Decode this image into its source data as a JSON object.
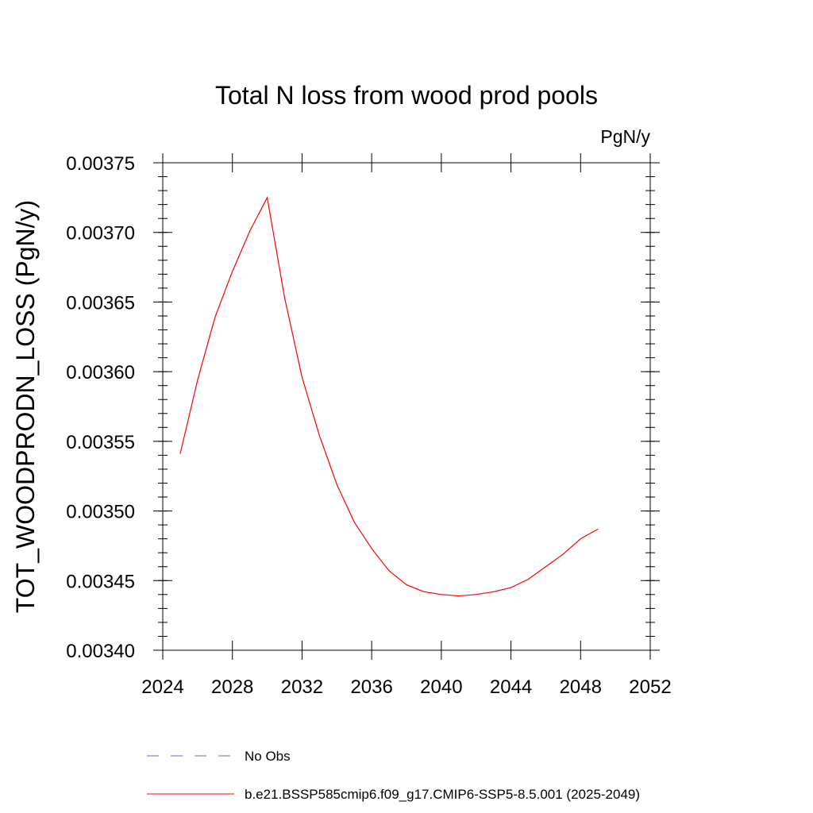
{
  "chart_data": {
    "type": "line",
    "title": "Total N loss from wood prod pools",
    "units": "PgN/y",
    "ylabel": "TOT_WOODPRODN_LOSS  (PgN/y)",
    "xlabel": "",
    "xlim": [
      2024,
      2052
    ],
    "ylim": [
      0.0034,
      0.00375
    ],
    "xticks": [
      "2024",
      "2028",
      "2032",
      "2036",
      "2040",
      "2044",
      "2048",
      "2052"
    ],
    "yticks": [
      "0.00340",
      "0.00345",
      "0.00350",
      "0.00355",
      "0.00360",
      "0.00365",
      "0.00370",
      "0.00375"
    ],
    "grid": false,
    "legend_position": "bottom",
    "series": [
      {
        "name": "No Obs",
        "color": "#6666cc",
        "style": "dashed",
        "x": [],
        "y": []
      },
      {
        "name": "b.e21.BSSP585cmip6.f09_g17.CMIP6-SSP5-8.5.001 (2025-2049)",
        "color": "#ff0000",
        "style": "solid",
        "x": [
          2025,
          2026,
          2027,
          2028,
          2029,
          2030,
          2031,
          2032,
          2033,
          2034,
          2035,
          2036,
          2037,
          2038,
          2039,
          2040,
          2041,
          2042,
          2043,
          2044,
          2045,
          2046,
          2047,
          2048,
          2049
        ],
        "y": [
          0.003541,
          0.003594,
          0.003639,
          0.003672,
          0.003701,
          0.003725,
          0.003653,
          0.003596,
          0.003554,
          0.003519,
          0.003492,
          0.003473,
          0.003457,
          0.003447,
          0.003442,
          0.00344,
          0.003439,
          0.00344,
          0.003442,
          0.003445,
          0.003451,
          0.00346,
          0.003469,
          0.00348,
          0.003487
        ]
      }
    ]
  }
}
